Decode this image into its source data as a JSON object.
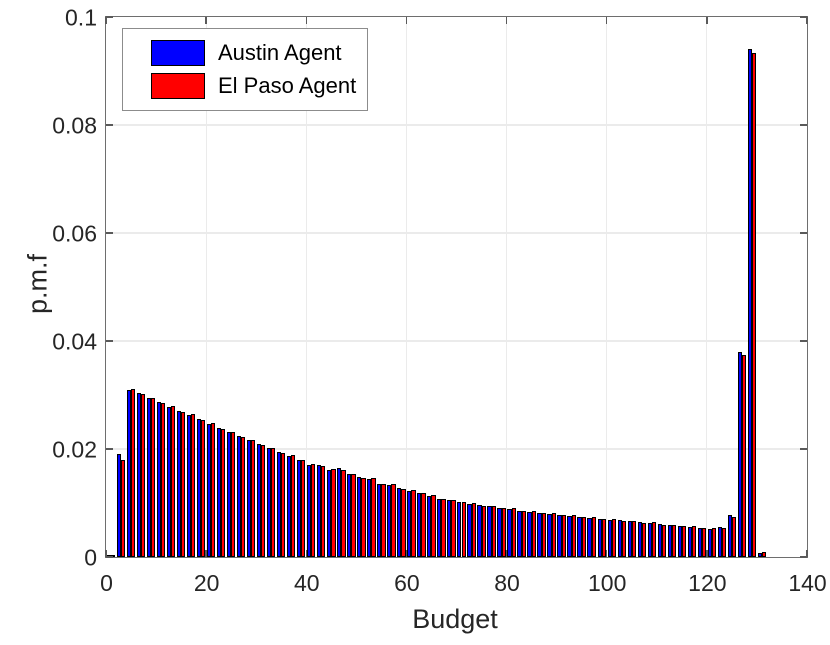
{
  "figure": {
    "background": "#ffffff"
  },
  "chart_data": {
    "type": "bar",
    "title": "",
    "xlabel": "Budget",
    "ylabel": "p.m.f",
    "xlim": [
      0,
      140
    ],
    "ylim": [
      0,
      0.1
    ],
    "x_ticks": [
      0,
      20,
      40,
      60,
      80,
      100,
      120,
      140
    ],
    "y_ticks": [
      0,
      0.02,
      0.04,
      0.06,
      0.08,
      0.1
    ],
    "y_tick_labels": [
      "0",
      "0.02",
      "0.04",
      "0.06",
      "0.08",
      "0.1"
    ],
    "grid": true,
    "legend_position": "top-left",
    "bin_width": 2,
    "bar_edge_color": "#000000",
    "grid_color": "#ebebeb",
    "axis_color": "#6e6e6e",
    "text_color": "#262626",
    "categories": [
      1,
      3,
      5,
      7,
      9,
      11,
      13,
      15,
      17,
      19,
      21,
      23,
      25,
      27,
      29,
      31,
      33,
      35,
      37,
      39,
      41,
      43,
      45,
      47,
      49,
      51,
      53,
      55,
      57,
      59,
      61,
      63,
      65,
      67,
      69,
      71,
      73,
      75,
      77,
      79,
      81,
      83,
      85,
      87,
      89,
      91,
      93,
      95,
      97,
      99,
      101,
      103,
      105,
      107,
      109,
      111,
      113,
      115,
      117,
      119,
      121,
      123,
      125,
      127,
      129,
      131
    ],
    "series": [
      {
        "name": "Austin Agent",
        "color": "#0000ff",
        "values": [
          0.0004,
          0.019,
          0.031,
          0.0303,
          0.0294,
          0.0287,
          0.0278,
          0.0271,
          0.0263,
          0.0255,
          0.0247,
          0.0239,
          0.0231,
          0.0224,
          0.0216,
          0.0209,
          0.0201,
          0.0194,
          0.0187,
          0.018,
          0.0171,
          0.0171,
          0.0162,
          0.0164,
          0.0153,
          0.0148,
          0.0145,
          0.0136,
          0.0134,
          0.0127,
          0.0123,
          0.0119,
          0.0113,
          0.0108,
          0.0105,
          0.0102,
          0.0099,
          0.0096,
          0.0094,
          0.0091,
          0.0089,
          0.0086,
          0.0084,
          0.0082,
          0.008,
          0.0078,
          0.0076,
          0.0075,
          0.0073,
          0.0071,
          0.0069,
          0.0068,
          0.0066,
          0.0064,
          0.0063,
          0.0061,
          0.0059,
          0.0058,
          0.0056,
          0.0054,
          0.0052,
          0.0055,
          0.0077,
          0.038,
          0.0941,
          0.0008
        ]
      },
      {
        "name": "El Paso Agent",
        "color": "#ff0000",
        "values": [
          0.0003,
          0.018,
          0.0312,
          0.0301,
          0.0295,
          0.0285,
          0.028,
          0.0269,
          0.0264,
          0.0253,
          0.0248,
          0.0237,
          0.0232,
          0.0222,
          0.0217,
          0.0207,
          0.0202,
          0.0192,
          0.0188,
          0.0179,
          0.0172,
          0.0169,
          0.0163,
          0.0162,
          0.0154,
          0.0147,
          0.0146,
          0.0135,
          0.0135,
          0.0126,
          0.0124,
          0.0118,
          0.0114,
          0.0107,
          0.0106,
          0.0101,
          0.01,
          0.0095,
          0.0095,
          0.009,
          0.009,
          0.0085,
          0.0085,
          0.0081,
          0.0081,
          0.0077,
          0.0077,
          0.0074,
          0.0074,
          0.007,
          0.007,
          0.0067,
          0.0067,
          0.0063,
          0.0064,
          0.006,
          0.006,
          0.0057,
          0.0057,
          0.0053,
          0.0053,
          0.0054,
          0.0075,
          0.0374,
          0.0933,
          0.001
        ]
      }
    ]
  }
}
